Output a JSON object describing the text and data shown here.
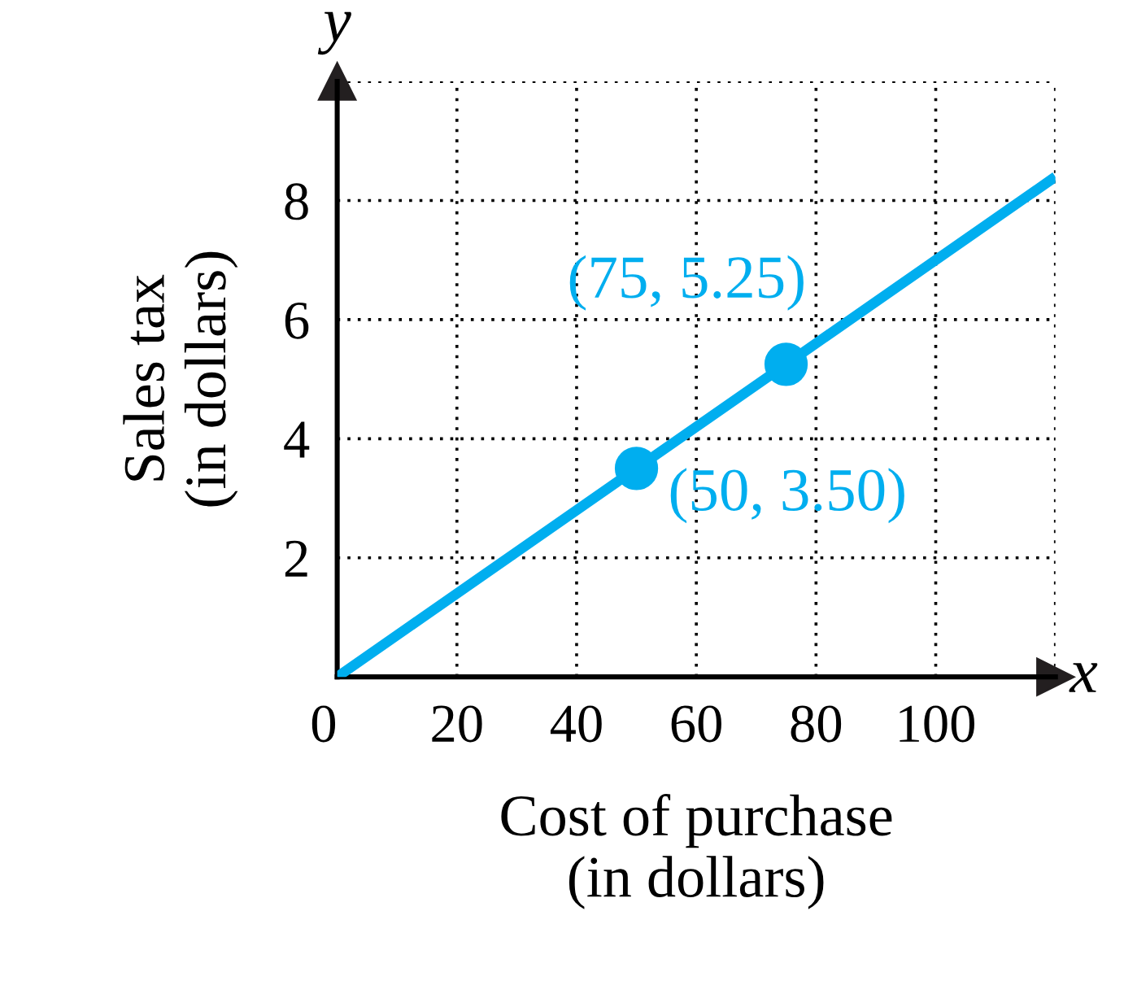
{
  "chart_data": {
    "type": "line",
    "xlabel": "Cost of purchase\n(in dollars)",
    "ylabel": "Sales tax\n(in dollars)",
    "series": [
      {
        "color": "#00aeef",
        "x": [
          0,
          50,
          75,
          120
        ],
        "values": [
          0,
          3.5,
          5.25,
          8.4
        ],
        "marker": "none"
      },
      {
        "type": "scatter",
        "color": "#00aeef",
        "x": [
          50,
          75
        ],
        "values": [
          3.5,
          5.25
        ],
        "marker": "circle"
      }
    ],
    "annotations": [
      {
        "text": "(50, 3.50)",
        "x": 50,
        "y": 3.5
      },
      {
        "text": "(75, 5.25)",
        "x": 75,
        "y": 5.25
      },
      "x",
      "y"
    ],
    "xlim": [
      0,
      120
    ],
    "ylim": [
      0,
      10
    ],
    "xticks": [
      0,
      20,
      40,
      60,
      80,
      100,
      {
        "value": 120,
        "label": null
      }
    ],
    "yticks": [
      {
        "value": 0,
        "label": null
      },
      2,
      4,
      6,
      8,
      {
        "value": 10,
        "label": null
      }
    ],
    "grid": true
  }
}
